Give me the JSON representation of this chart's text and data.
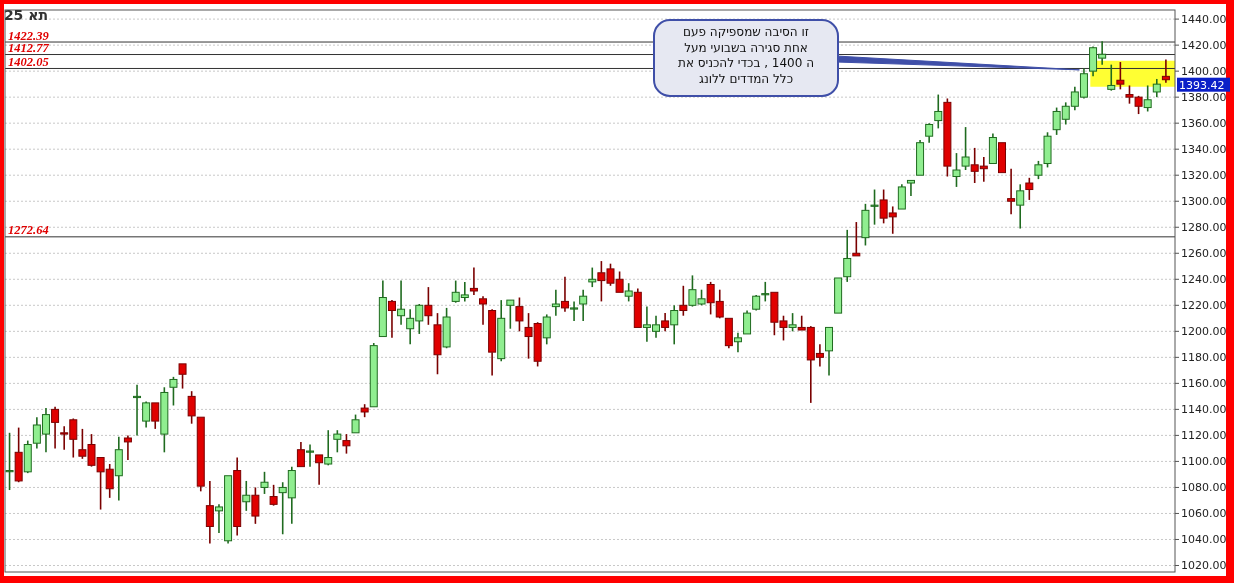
{
  "chart_data": {
    "type": "candlestick",
    "title": "תא 25",
    "categories": [
      null,
      null,
      null,
      null,
      null,
      null,
      null,
      null,
      null,
      null,
      null,
      null,
      null,
      null,
      null,
      null,
      null,
      null,
      null,
      null,
      null,
      null,
      null,
      null,
      null,
      null,
      null,
      null,
      null,
      null,
      null,
      null,
      null,
      null,
      null,
      null,
      null,
      null,
      null,
      null,
      null,
      null,
      null,
      null,
      null,
      null,
      null,
      null,
      null,
      null,
      null,
      null,
      null,
      null,
      null,
      null,
      null,
      null,
      null,
      null,
      null,
      null,
      null,
      null,
      null,
      null,
      null,
      null,
      null,
      null,
      null,
      null,
      null,
      null,
      null,
      null,
      null,
      null,
      null,
      null,
      null,
      null,
      null,
      null,
      null,
      null,
      null,
      null,
      null,
      null,
      null,
      null,
      null,
      null,
      null,
      null,
      null,
      null,
      null,
      null,
      null,
      null,
      null,
      null,
      null,
      null,
      null,
      null,
      null,
      null,
      null,
      null,
      null,
      null,
      null,
      null,
      null,
      null,
      null,
      null,
      null,
      null,
      null,
      null,
      null,
      null,
      null,
      null
    ],
    "ohlc": [
      [
        1093,
        1122,
        1078,
        1093
      ],
      [
        1107,
        1126,
        1084,
        1085
      ],
      [
        1092,
        1116,
        1091,
        1113
      ],
      [
        1114,
        1134,
        1110,
        1128
      ],
      [
        1121,
        1141,
        1107,
        1136
      ],
      [
        1140,
        1142,
        1110,
        1130
      ],
      [
        1122,
        1127,
        1109,
        1121
      ],
      [
        1132,
        1133,
        1103,
        1117
      ],
      [
        1109,
        1125,
        1102,
        1104
      ],
      [
        1113,
        1121,
        1096,
        1097
      ],
      [
        1103,
        1103,
        1063,
        1092
      ],
      [
        1094,
        1098,
        1072,
        1079
      ],
      [
        1089,
        1119,
        1070,
        1109
      ],
      [
        1118,
        1120,
        1101,
        1115
      ],
      [
        1150,
        1159,
        1120,
        1150
      ],
      [
        1131,
        1146,
        1126,
        1145
      ],
      [
        1145,
        1145,
        1125,
        1131
      ],
      [
        1121,
        1157,
        1107,
        1153
      ],
      [
        1157,
        1165,
        1143,
        1163
      ],
      [
        1175,
        1175,
        1156,
        1167
      ],
      [
        1150,
        1154,
        1129,
        1135
      ],
      [
        1134,
        1134,
        1077,
        1081
      ],
      [
        1066,
        1085,
        1037,
        1050
      ],
      [
        1062,
        1067,
        1045,
        1065
      ],
      [
        1039,
        1089,
        1037,
        1089
      ],
      [
        1093,
        1103,
        1043,
        1050
      ],
      [
        1069,
        1085,
        1062,
        1074
      ],
      [
        1074,
        1080,
        1052,
        1058
      ],
      [
        1080,
        1092,
        1075,
        1084
      ],
      [
        1073,
        1082,
        1066,
        1067
      ],
      [
        1076,
        1084,
        1044,
        1080
      ],
      [
        1072,
        1096,
        1052,
        1093
      ],
      [
        1109,
        1115,
        1096,
        1096
      ],
      [
        1108,
        1113,
        1096,
        1108
      ],
      [
        1105,
        1105,
        1082,
        1099
      ],
      [
        1098,
        1124,
        1097,
        1103
      ],
      [
        1117,
        1124,
        1107,
        1121
      ],
      [
        1116,
        1121,
        1106,
        1112
      ],
      [
        1122,
        1136,
        1122,
        1132
      ],
      [
        1141,
        1144,
        1134,
        1138
      ],
      [
        1142,
        1191,
        1142,
        1189
      ],
      [
        1196,
        1239,
        1196,
        1226
      ],
      [
        1223,
        1224,
        1195,
        1216
      ],
      [
        1212,
        1239,
        1205,
        1217
      ],
      [
        1202,
        1217,
        1190,
        1210
      ],
      [
        1208,
        1221,
        1198,
        1220
      ],
      [
        1220,
        1234,
        1205,
        1212
      ],
      [
        1205,
        1214,
        1167,
        1182
      ],
      [
        1188,
        1218,
        1187,
        1211
      ],
      [
        1223,
        1239,
        1222,
        1230
      ],
      [
        1226,
        1238,
        1223,
        1228
      ],
      [
        1233,
        1249,
        1228,
        1231
      ],
      [
        1225,
        1227,
        1205,
        1221
      ],
      [
        1216,
        1217,
        1166,
        1184
      ],
      [
        1179,
        1224,
        1177,
        1210
      ],
      [
        1220,
        1224,
        1202,
        1224
      ],
      [
        1219,
        1226,
        1200,
        1208
      ],
      [
        1203,
        1214,
        1179,
        1196
      ],
      [
        1206,
        1207,
        1173,
        1177
      ],
      [
        1195,
        1213,
        1190,
        1211
      ],
      [
        1219,
        1232,
        1212,
        1221
      ],
      [
        1223,
        1242,
        1215,
        1218
      ],
      [
        1218,
        1223,
        1208,
        1218
      ],
      [
        1221,
        1232,
        1208,
        1227
      ],
      [
        1238,
        1249,
        1234,
        1240
      ],
      [
        1245,
        1254,
        1223,
        1239
      ],
      [
        1248,
        1252,
        1235,
        1237
      ],
      [
        1240,
        1246,
        1230,
        1230
      ],
      [
        1227,
        1237,
        1223,
        1231
      ],
      [
        1230,
        1233,
        1203,
        1203
      ],
      [
        1203,
        1219,
        1192,
        1205
      ],
      [
        1200,
        1212,
        1195,
        1205
      ],
      [
        1208,
        1214,
        1200,
        1203
      ],
      [
        1205,
        1220,
        1190,
        1216
      ],
      [
        1220,
        1235,
        1212,
        1216
      ],
      [
        1220,
        1243,
        1219,
        1232
      ],
      [
        1221,
        1232,
        1220,
        1225
      ],
      [
        1236,
        1238,
        1213,
        1222
      ],
      [
        1223,
        1232,
        1210,
        1211
      ],
      [
        1210,
        1210,
        1187,
        1189
      ],
      [
        1192,
        1199,
        1184,
        1195
      ],
      [
        1198,
        1216,
        1198,
        1214
      ],
      [
        1217,
        1228,
        1216,
        1227
      ],
      [
        1229,
        1238,
        1223,
        1229
      ],
      [
        1230,
        1230,
        1197,
        1207
      ],
      [
        1208,
        1212,
        1193,
        1203
      ],
      [
        1203,
        1214,
        1200,
        1205
      ],
      [
        1203,
        1212,
        1201,
        1201
      ],
      [
        1203,
        1204,
        1145,
        1178
      ],
      [
        1183,
        1190,
        1173,
        1180
      ],
      [
        1185,
        1203,
        1166,
        1203
      ],
      [
        1214,
        1241,
        1214,
        1241
      ],
      [
        1242,
        1278,
        1238,
        1256
      ],
      [
        1260,
        1284,
        1258,
        1258
      ],
      [
        1272,
        1298,
        1266,
        1293
      ],
      [
        1297,
        1309,
        1282,
        1297
      ],
      [
        1301,
        1309,
        1283,
        1287
      ],
      [
        1291,
        1296,
        1275,
        1288
      ],
      [
        1294,
        1313,
        1294,
        1311
      ],
      [
        1314,
        1316,
        1304,
        1316
      ],
      [
        1320,
        1347,
        1320,
        1345
      ],
      [
        1350,
        1360,
        1345,
        1359
      ],
      [
        1362,
        1382,
        1356,
        1369
      ],
      [
        1376,
        1379,
        1319,
        1327
      ],
      [
        1319,
        1337,
        1311,
        1324
      ],
      [
        1327,
        1357,
        1324,
        1334
      ],
      [
        1328,
        1341,
        1314,
        1323
      ],
      [
        1327,
        1334,
        1315,
        1325
      ],
      [
        1329,
        1352,
        1329,
        1349
      ],
      [
        1345,
        1345,
        1322,
        1322
      ],
      [
        1302,
        1325,
        1290,
        1300
      ],
      [
        1297,
        1313,
        1279,
        1308
      ],
      [
        1314,
        1318,
        1301,
        1309
      ],
      [
        1320,
        1331,
        1317,
        1328
      ],
      [
        1329,
        1353,
        1326,
        1350
      ],
      [
        1355,
        1372,
        1351,
        1369
      ],
      [
        1363,
        1376,
        1359,
        1373
      ],
      [
        1373,
        1388,
        1370,
        1384
      ],
      [
        1380,
        1402,
        1379,
        1398
      ],
      [
        1400,
        1419,
        1396,
        1418
      ],
      [
        1410,
        1423,
        1405,
        1413
      ],
      [
        1386,
        1405,
        1385,
        1389
      ],
      [
        1393,
        1407,
        1386,
        1390
      ],
      [
        1382,
        1389,
        1375,
        1380
      ],
      [
        1380,
        1381,
        1367,
        1373
      ],
      [
        1372,
        1389,
        1369,
        1378
      ],
      [
        1384,
        1394,
        1380,
        1390
      ],
      [
        1396,
        1409,
        1391,
        1393.42
      ]
    ],
    "ylim": [
      1015,
      1447
    ],
    "yticks": [
      {
        "value": 1020,
        "label": "1020.00"
      },
      {
        "value": 1040,
        "label": "1040.00"
      },
      {
        "value": 1060,
        "label": "1060.00"
      },
      {
        "value": 1080,
        "label": "1080.00"
      },
      {
        "value": 1100,
        "label": "1100.00"
      },
      {
        "value": 1120,
        "label": "1120.00"
      },
      {
        "value": 1140,
        "label": "1140.00"
      },
      {
        "value": 1160,
        "label": "1160.00"
      },
      {
        "value": 1180,
        "label": "1180.00"
      },
      {
        "value": 1200,
        "label": "1200.00"
      },
      {
        "value": 1220,
        "label": "1220.00"
      },
      {
        "value": 1240,
        "label": "1240.00"
      },
      {
        "value": 1260,
        "label": "1260.00"
      },
      {
        "value": 1280,
        "label": "1280.00"
      },
      {
        "value": 1300,
        "label": "1300.00"
      },
      {
        "value": 1320,
        "label": "1320.00"
      },
      {
        "value": 1340,
        "label": "1340.00"
      },
      {
        "value": 1360,
        "label": "1360.00"
      },
      {
        "value": 1380,
        "label": "1380.00"
      },
      {
        "value": 1400,
        "label": "1400.00"
      },
      {
        "value": 1420,
        "label": "1420.00"
      },
      {
        "value": 1440,
        "label": "1440.00"
      }
    ],
    "ref_lines": [
      {
        "axis": "y",
        "value": 1422.39,
        "label": "1422.39",
        "color": "#333333"
      },
      {
        "axis": "y",
        "value": 1412.77,
        "label": "1412.77",
        "color": "#333333"
      },
      {
        "axis": "y",
        "value": 1402.05,
        "label": "1402.05",
        "color": "#333333"
      },
      {
        "axis": "y",
        "value": 1272.64,
        "label": "1272.64",
        "color": "#333333"
      }
    ],
    "bands": [
      {
        "axis": "y",
        "from": 1388,
        "to": 1408,
        "color": "#ffff33"
      }
    ],
    "annotations": [
      "זו הסיבה  שמספיקה   פעם\nאחת סגירה  בשבועי  מעל\nה 1400 ,  בכדי  להכניס  את\nכלל  המדדים  ללונג",
      "1393.42"
    ],
    "grid": "y",
    "tick_labels": "y"
  }
}
